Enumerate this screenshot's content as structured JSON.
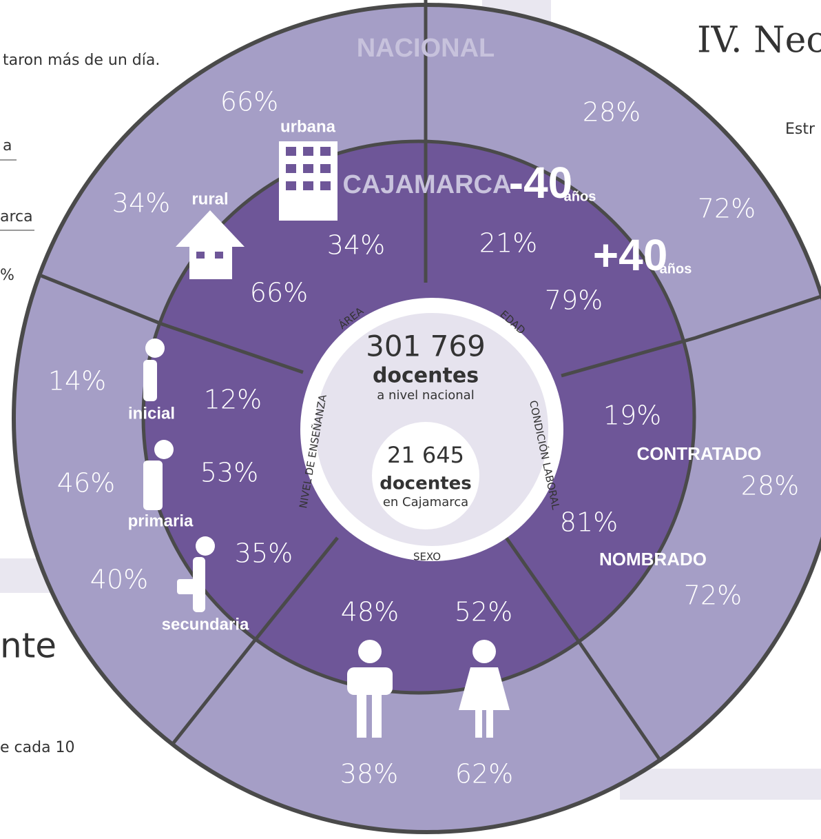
{
  "background_text": {
    "left": [
      "taron más de un día.",
      "a",
      "arca",
      "%",
      "nte",
      "e cada 10"
    ],
    "right": [
      "IV. Nec",
      "Estr"
    ]
  },
  "outer_label": "NACIONAL",
  "inner_label": "CAJAMARCA",
  "center": {
    "national_value": "301 769",
    "national_unit": "docentes",
    "national_caption": "a nivel nacional",
    "regional_value": "21 645",
    "regional_unit": "docentes",
    "regional_caption": "en Cajamarca"
  },
  "dimensions": [
    "ÁREA",
    "EDAD",
    "CONDICIÓN LABORAL",
    "SEXO",
    "NIVEL DE ENSEÑANZA"
  ],
  "area": {
    "labels": [
      "urbana",
      "rural"
    ],
    "nacional": [
      "66%",
      "34%"
    ],
    "cajamarca": [
      "34%",
      "66%"
    ]
  },
  "edad": {
    "labels": [
      "-40",
      "+40"
    ],
    "unit": "años",
    "nacional": [
      "28%",
      "72%"
    ],
    "cajamarca": [
      "21%",
      "79%"
    ]
  },
  "condicion": {
    "labels": [
      "CONTRATADO",
      "NOMBRADO"
    ],
    "nacional": [
      "28%",
      "72%"
    ],
    "cajamarca": [
      "19%",
      "81%"
    ]
  },
  "sexo": {
    "nacional": [
      "38%",
      "62%"
    ],
    "cajamarca": [
      "48%",
      "52%"
    ]
  },
  "nivel": {
    "labels": [
      "inicial",
      "primaria",
      "secundaria"
    ],
    "nacional": [
      "14%",
      "46%",
      "40%"
    ],
    "cajamarca": [
      "12%",
      "53%",
      "35%"
    ]
  }
}
